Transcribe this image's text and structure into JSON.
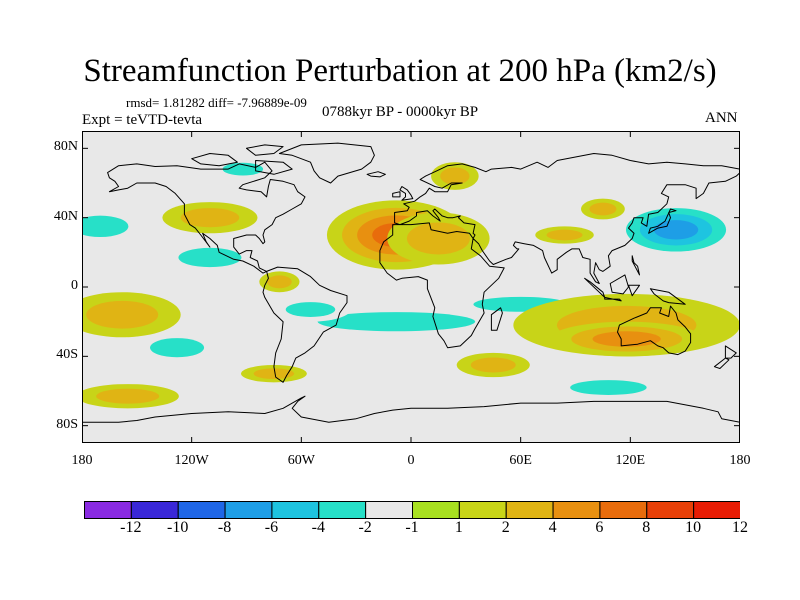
{
  "figure": {
    "title": "Streamfunction Perturbation at 200 hPa (km2/s)",
    "stats": "rmsd= 1.81282  diff= -7.96889e-09",
    "left_label": "Expt = teVTD-tevta",
    "center_label": "0788kyr BP - 0000kyr BP",
    "right_label": "ANN"
  },
  "map_axes": {
    "lat_labels": [
      {
        "text": "80N",
        "lat": 80
      },
      {
        "text": "40N",
        "lat": 40
      },
      {
        "text": "0",
        "lat": 0
      },
      {
        "text": "40S",
        "lat": -40
      },
      {
        "text": "80S",
        "lat": -80
      }
    ],
    "lon_labels": [
      {
        "text": "180",
        "lon": -180
      },
      {
        "text": "120W",
        "lon": -120
      },
      {
        "text": "60W",
        "lon": -60
      },
      {
        "text": "0",
        "lon": 0
      },
      {
        "text": "60E",
        "lon": 60
      },
      {
        "text": "120E",
        "lon": 120
      },
      {
        "text": "180",
        "lon": 180
      }
    ],
    "lon_range": [
      -180,
      180
    ],
    "lat_range": [
      -90,
      90
    ],
    "background_color": "#e8e8e8"
  },
  "colorbar": {
    "colors": [
      "#8a2be2",
      "#3a28d8",
      "#1f66e6",
      "#1e9ee6",
      "#1ec4e0",
      "#27e0c8",
      "#e8e8e8",
      "#a8e020",
      "#c8d418",
      "#e0b414",
      "#e89010",
      "#e86c0c",
      "#e84008",
      "#e81c04"
    ],
    "labels": [
      "-12",
      "-10",
      "-8",
      "-6",
      "-4",
      "-2",
      "-1",
      "1",
      "2",
      "4",
      "6",
      "8",
      "10",
      "12"
    ]
  },
  "anomalies": [
    {
      "lon": -8,
      "lat": 30,
      "rx": 38,
      "ry": 20,
      "value": 6.5
    },
    {
      "lon": 15,
      "lat": 28,
      "rx": 28,
      "ry": 15,
      "value": 3
    },
    {
      "lon": -110,
      "lat": 40,
      "rx": 26,
      "ry": 9,
      "value": 2.5
    },
    {
      "lon": -170,
      "lat": 35,
      "rx": 25,
      "ry": 10,
      "value": -2.5
    },
    {
      "lon": -110,
      "lat": 17,
      "rx": 28,
      "ry": 9,
      "value": -2.5
    },
    {
      "lon": -72,
      "lat": 3,
      "rx": 11,
      "ry": 6,
      "value": 2.5
    },
    {
      "lon": -92,
      "lat": 68,
      "rx": 18,
      "ry": 6,
      "value": -2.5
    },
    {
      "lon": 24,
      "lat": 64,
      "rx": 13,
      "ry": 8,
      "value": 2.5
    },
    {
      "lon": 145,
      "lat": 33,
      "rx": 35,
      "ry": 16,
      "value": -6
    },
    {
      "lon": 84,
      "lat": 30,
      "rx": 16,
      "ry": 5,
      "value": 2
    },
    {
      "lon": -8,
      "lat": -20,
      "rx": 70,
      "ry": 9,
      "value": -2.5
    },
    {
      "lon": 60,
      "lat": -10,
      "rx": 42,
      "ry": 7,
      "value": -2.5
    },
    {
      "lon": -55,
      "lat": -13,
      "rx": 22,
      "ry": 7,
      "value": -2.5
    },
    {
      "lon": -158,
      "lat": -16,
      "rx": 32,
      "ry": 13,
      "value": 3
    },
    {
      "lon": -128,
      "lat": -35,
      "rx": 24,
      "ry": 9,
      "value": -3
    },
    {
      "lon": 118,
      "lat": -22,
      "rx": 62,
      "ry": 18,
      "value": 3
    },
    {
      "lon": 118,
      "lat": -30,
      "rx": 42,
      "ry": 10,
      "value": 4
    },
    {
      "lon": 108,
      "lat": -58,
      "rx": 34,
      "ry": 7,
      "value": -2
    },
    {
      "lon": 45,
      "lat": -45,
      "rx": 20,
      "ry": 7,
      "value": 2
    },
    {
      "lon": -75,
      "lat": -50,
      "rx": 18,
      "ry": 5,
      "value": 2
    },
    {
      "lon": -155,
      "lat": -63,
      "rx": 28,
      "ry": 7,
      "value": 2
    },
    {
      "lon": 105,
      "lat": 45,
      "rx": 12,
      "ry": 6,
      "value": 2
    }
  ]
}
